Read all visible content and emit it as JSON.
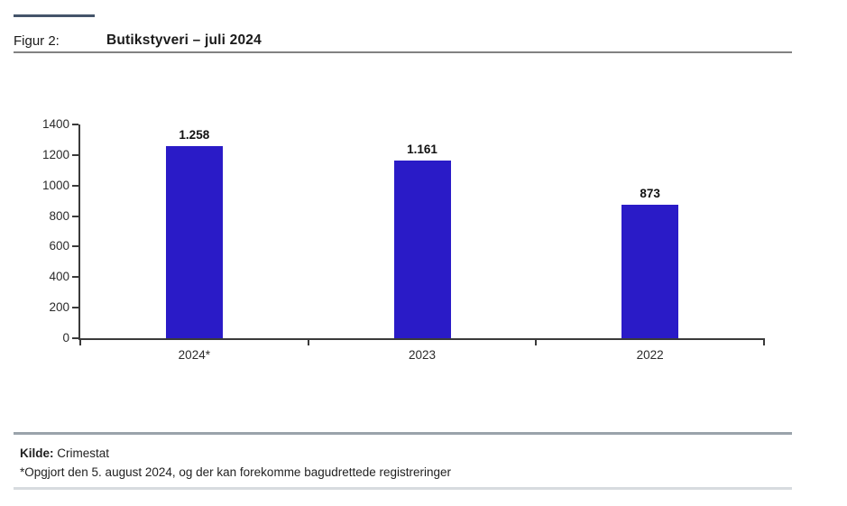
{
  "figure": {
    "label": "Figur 2:",
    "title": "Butikstyveri – juli 2024"
  },
  "footer": {
    "source_label": "Kilde:",
    "source_text": "Crimestat",
    "note": "*Opgjort den 5. august 2024, og der kan forekomme bagudrettede registreringer"
  },
  "colors": {
    "bar": "#2a1bc7",
    "accent_rule": "#44546a",
    "title_rule": "#828282",
    "footer_rule": "#9aa3ab",
    "bottom_rule": "#d7dbdf",
    "axis": "#3a3a3a",
    "text": "#1a1a1a"
  },
  "chart_data": {
    "type": "bar",
    "categories": [
      "2024*",
      "2023",
      "2022"
    ],
    "values": [
      1258,
      1161,
      873
    ],
    "value_labels": [
      "1.258",
      "1.161",
      "873"
    ],
    "title": "Butikstyveri – juli 2024",
    "xlabel": "",
    "ylabel": "",
    "ylim": [
      0,
      1400
    ],
    "ytick_step": 200,
    "grid": false,
    "legend": false,
    "bar_color": "#2a1bc7"
  }
}
